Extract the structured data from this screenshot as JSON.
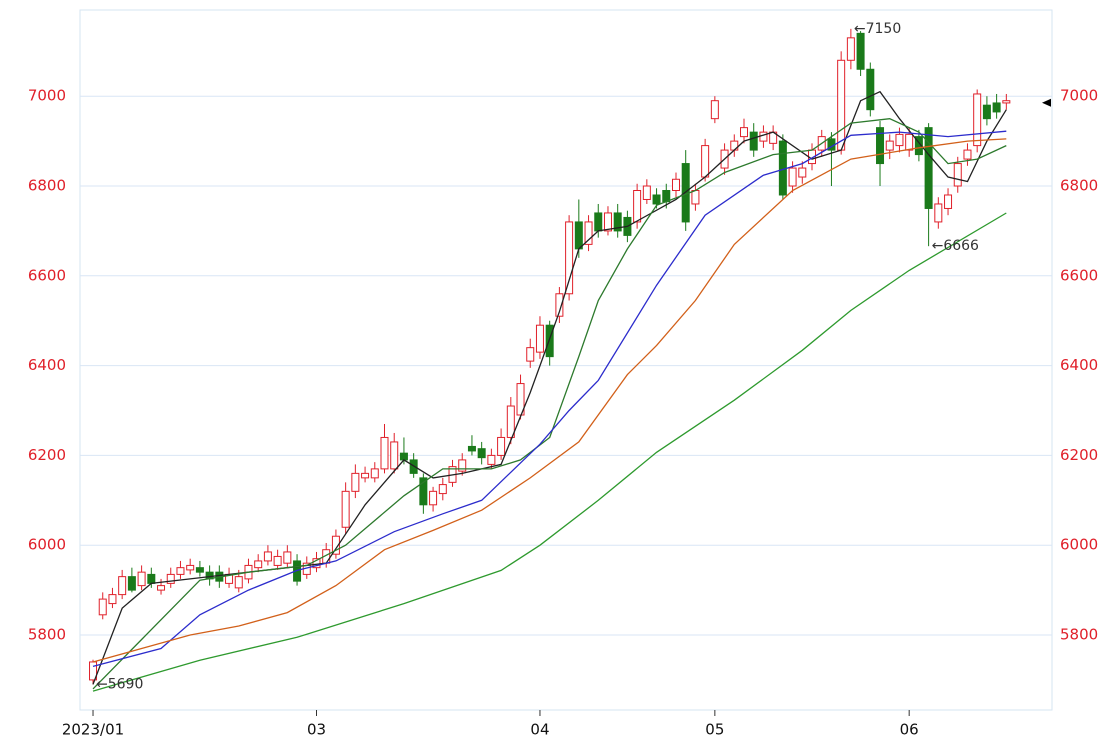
{
  "chart_data": {
    "type": "candlestick",
    "xlim": [
      -1.34,
      98.7
    ],
    "ylim": [
      5633,
      7192
    ],
    "y2lim": [
      5633,
      7192
    ],
    "xticks": [
      {
        "value": 0,
        "label": "2023/01"
      },
      {
        "value": 23,
        "label": "03"
      },
      {
        "value": 46,
        "label": "04"
      },
      {
        "value": 64,
        "label": "05"
      },
      {
        "value": 84,
        "label": "06"
      }
    ],
    "yticks": [
      5800,
      6000,
      6200,
      6400,
      6600,
      6800,
      7000
    ],
    "y2ticks": [
      5800,
      6000,
      6200,
      6400,
      6600,
      6800,
      7000
    ],
    "grid": true,
    "up_color": "#e0202a",
    "down_color": "#1a7a1a",
    "open": [
      5700,
      5845,
      5870,
      5890,
      5930,
      5910,
      5935,
      5900,
      5915,
      5935,
      5945,
      5950,
      5940,
      5940,
      5915,
      5905,
      5925,
      5950,
      5965,
      5955,
      5960,
      5965,
      5935,
      5950,
      5960,
      5980,
      6040,
      6120,
      6150,
      6150,
      6170,
      6170,
      6205,
      6190,
      6150,
      6090,
      6115,
      6140,
      6165,
      6220,
      6215,
      6180,
      6200,
      6240,
      6290,
      6410,
      6430,
      6490,
      6510,
      6560,
      6720,
      6670,
      6740,
      6700,
      6740,
      6730,
      6720,
      6770,
      6780,
      6790,
      6790,
      6850,
      6760,
      6820,
      6950,
      6840,
      6880,
      6910,
      6920,
      6900,
      6895,
      6900,
      6800,
      6820,
      6850,
      6880,
      6905,
      6880,
      7080,
      7140,
      7060,
      6930,
      6880,
      6890,
      6880,
      6910,
      6930,
      6720,
      6750,
      6800,
      6860,
      6890,
      6980,
      6985,
      6985
    ],
    "high": [
      5745,
      5895,
      5905,
      5945,
      5950,
      5955,
      5950,
      5925,
      5950,
      5965,
      5970,
      5965,
      5955,
      5955,
      5950,
      5945,
      5970,
      5980,
      6000,
      5990,
      6000,
      5980,
      5975,
      5985,
      6005,
      6035,
      6140,
      6180,
      6175,
      6185,
      6270,
      6250,
      6240,
      6205,
      6160,
      6130,
      6150,
      6190,
      6205,
      6245,
      6230,
      6215,
      6260,
      6330,
      6380,
      6460,
      6510,
      6500,
      6575,
      6735,
      6770,
      6735,
      6760,
      6755,
      6760,
      6745,
      6805,
      6815,
      6795,
      6805,
      6830,
      6880,
      6805,
      6905,
      7000,
      6895,
      6915,
      6950,
      6940,
      6935,
      6935,
      6915,
      6855,
      6855,
      6895,
      6925,
      6920,
      7100,
      7150,
      7145,
      7075,
      6945,
      6915,
      6930,
      6930,
      6925,
      6940,
      6775,
      6795,
      6865,
      6895,
      7015,
      7000,
      7005,
      7005
    ],
    "low": [
      5690,
      5835,
      5860,
      5880,
      5895,
      5900,
      5905,
      5890,
      5905,
      5925,
      5935,
      5930,
      5910,
      5905,
      5905,
      5895,
      5915,
      5940,
      5955,
      5945,
      5950,
      5910,
      5925,
      5940,
      5950,
      5970,
      6025,
      6105,
      6140,
      6140,
      6160,
      6160,
      6180,
      6150,
      6070,
      6075,
      6100,
      6130,
      6155,
      6200,
      6180,
      6170,
      6190,
      6225,
      6280,
      6395,
      6415,
      6400,
      6495,
      6545,
      6640,
      6655,
      6685,
      6690,
      6685,
      6675,
      6705,
      6760,
      6750,
      6750,
      6775,
      6700,
      6745,
      6810,
      6940,
      6825,
      6865,
      6895,
      6865,
      6885,
      6880,
      6770,
      6785,
      6805,
      6835,
      6865,
      6800,
      6870,
      7060,
      7045,
      6955,
      6800,
      6860,
      6875,
      6865,
      6855,
      6666,
      6705,
      6735,
      6785,
      6845,
      6875,
      6935,
      6950,
      6970
    ],
    "close": [
      5740,
      5880,
      5890,
      5930,
      5900,
      5940,
      5915,
      5910,
      5935,
      5950,
      5955,
      5940,
      5925,
      5920,
      5935,
      5930,
      5955,
      5965,
      5985,
      5975,
      5985,
      5920,
      5960,
      5970,
      5990,
      6020,
      6120,
      6160,
      6160,
      6170,
      6240,
      6230,
      6190,
      6160,
      6090,
      6120,
      6135,
      6175,
      6190,
      6210,
      6195,
      6200,
      6240,
      6310,
      6360,
      6440,
      6490,
      6420,
      6560,
      6720,
      6660,
      6720,
      6700,
      6740,
      6700,
      6690,
      6790,
      6800,
      6760,
      6765,
      6815,
      6720,
      6790,
      6890,
      6990,
      6880,
      6900,
      6930,
      6880,
      6920,
      6920,
      6780,
      6840,
      6840,
      6880,
      6910,
      6880,
      7080,
      7130,
      7060,
      6970,
      6850,
      6900,
      6915,
      6915,
      6870,
      6750,
      6760,
      6780,
      6850,
      6880,
      7005,
      6950,
      6965,
      6990
    ],
    "lines": [
      {
        "color": "#222222",
        "x": [
          0,
          3,
          6,
          12,
          20,
          24,
          28,
          32,
          35,
          38,
          42,
          45,
          46,
          48,
          50,
          52,
          55,
          60,
          63,
          67,
          70,
          74,
          77,
          79,
          81,
          83,
          86,
          88,
          90,
          92,
          94
        ],
        "values": [
          5690,
          5860,
          5915,
          5930,
          5950,
          5960,
          6090,
          6190,
          6150,
          6160,
          6180,
          6340,
          6400,
          6520,
          6660,
          6700,
          6710,
          6770,
          6820,
          6900,
          6920,
          6860,
          6880,
          6990,
          7010,
          6950,
          6870,
          6820,
          6810,
          6900,
          6970
        ]
      },
      {
        "color": "#2d7a2d",
        "x": [
          0,
          5,
          11,
          16,
          22,
          26,
          32,
          36,
          41,
          44,
          47,
          50,
          52,
          55,
          58,
          62,
          65,
          70,
          74,
          78,
          82,
          85,
          88,
          91,
          94
        ],
        "values": [
          5680,
          5790,
          5922,
          5940,
          5955,
          6000,
          6110,
          6170,
          6170,
          6190,
          6240,
          6420,
          6545,
          6660,
          6757,
          6790,
          6830,
          6870,
          6880,
          6940,
          6950,
          6920,
          6850,
          6860,
          6890
        ]
      },
      {
        "color": "#2c2ccc",
        "x": [
          0,
          7,
          11,
          16,
          21,
          25,
          31,
          36,
          40,
          46,
          49,
          52,
          58,
          63,
          69,
          73,
          78,
          83,
          88,
          94
        ],
        "values": [
          5730,
          5770,
          5845,
          5900,
          5944,
          5965,
          6030,
          6070,
          6100,
          6225,
          6300,
          6367,
          6579,
          6735,
          6824,
          6850,
          6913,
          6920,
          6910,
          6922
        ]
      },
      {
        "color": "#d2601a",
        "x": [
          0,
          5,
          10,
          15,
          20,
          25,
          30,
          35,
          40,
          45,
          50,
          55,
          58,
          62,
          66,
          72,
          78,
          85,
          90,
          94
        ],
        "values": [
          5740,
          5770,
          5800,
          5820,
          5850,
          5910,
          5990,
          6033,
          6078,
          6150,
          6230,
          6380,
          6445,
          6545,
          6670,
          6790,
          6860,
          6885,
          6900,
          6905
        ]
      },
      {
        "color": "#2e9a2e",
        "x": [
          0,
          11,
          21,
          32,
          42,
          46,
          52,
          58,
          66,
          73,
          78,
          84,
          94
        ],
        "values": [
          5675,
          5744,
          5795,
          5870,
          5944,
          6000,
          6100,
          6207,
          6323,
          6434,
          6523,
          6612,
          6740
        ]
      }
    ],
    "annotations": [
      {
        "text": "←7150",
        "x": 78,
        "y": 7150
      },
      {
        "text": "←6666",
        "x": 86,
        "y": 6666
      },
      {
        "text": "←5690",
        "x": 0,
        "y": 5690
      }
    ]
  }
}
